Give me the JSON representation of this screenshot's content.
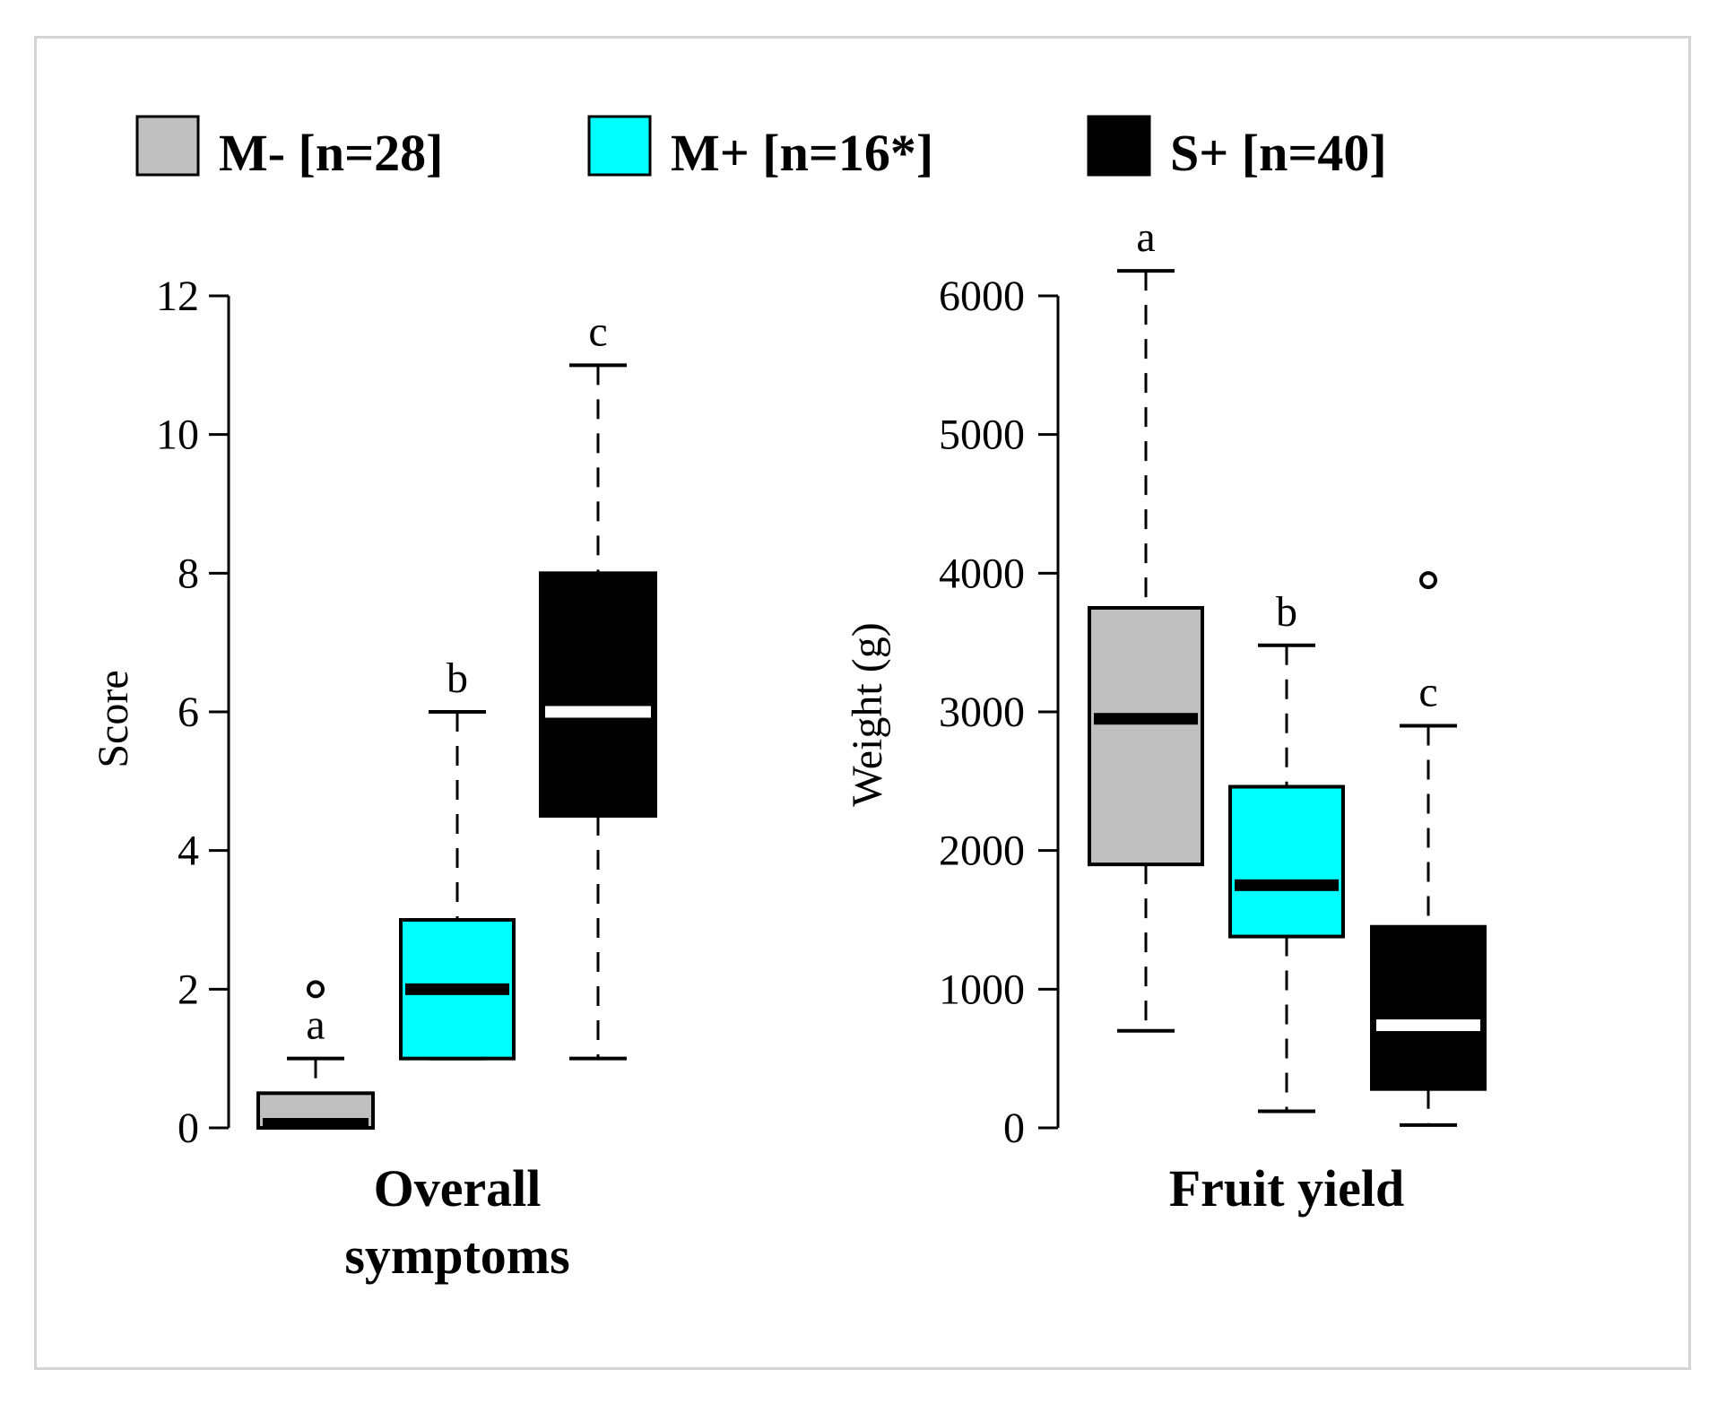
{
  "legend": [
    {
      "label": "M- [n=28]",
      "color": "#c0c0c0"
    },
    {
      "label": "M+ [n=16*]",
      "color": "#00ffff"
    },
    {
      "label": "S+ [n=40]",
      "color": "#000000"
    }
  ],
  "chart_data": [
    {
      "type": "boxplot",
      "title": "Overall symptoms",
      "title_lines": [
        "Overall",
        "symptoms"
      ],
      "ylabel": "Score",
      "ylim": [
        0,
        12
      ],
      "yticks": [
        0,
        2,
        4,
        6,
        8,
        10,
        12
      ],
      "groups": [
        {
          "name": "M-",
          "color": "#c0c0c0",
          "median_color": "#000000",
          "min": 0,
          "q1": 0,
          "median": 0,
          "q3": 0.5,
          "max": 1,
          "outliers": [
            2
          ],
          "letter": "a"
        },
        {
          "name": "M+",
          "color": "#00ffff",
          "median_color": "#000000",
          "min": 1,
          "q1": 1,
          "median": 2,
          "q3": 3,
          "max": 6,
          "outliers": [],
          "letter": "b"
        },
        {
          "name": "S+",
          "color": "#000000",
          "median_color": "#ffffff",
          "min": 1,
          "q1": 4.5,
          "median": 6,
          "q3": 8,
          "max": 11,
          "outliers": [],
          "letter": "c"
        }
      ]
    },
    {
      "type": "boxplot",
      "title": "Fruit yield",
      "title_lines": [
        "Fruit yield"
      ],
      "ylabel": "Weight (g)",
      "ylim": [
        0,
        6000
      ],
      "yticks": [
        0,
        1000,
        2000,
        3000,
        4000,
        5000,
        6000
      ],
      "groups": [
        {
          "name": "M-",
          "color": "#c0c0c0",
          "median_color": "#000000",
          "min": 700,
          "q1": 1900,
          "median": 2950,
          "q3": 3750,
          "max": 6180,
          "outliers": [],
          "letter": "a"
        },
        {
          "name": "M+",
          "color": "#00ffff",
          "median_color": "#000000",
          "min": 120,
          "q1": 1380,
          "median": 1750,
          "q3": 2460,
          "max": 3480,
          "outliers": [],
          "letter": "b"
        },
        {
          "name": "S+",
          "color": "#000000",
          "median_color": "#ffffff",
          "min": 20,
          "q1": 280,
          "median": 740,
          "q3": 1450,
          "max": 2900,
          "outliers": [
            3950
          ],
          "letter": "c"
        }
      ]
    }
  ]
}
